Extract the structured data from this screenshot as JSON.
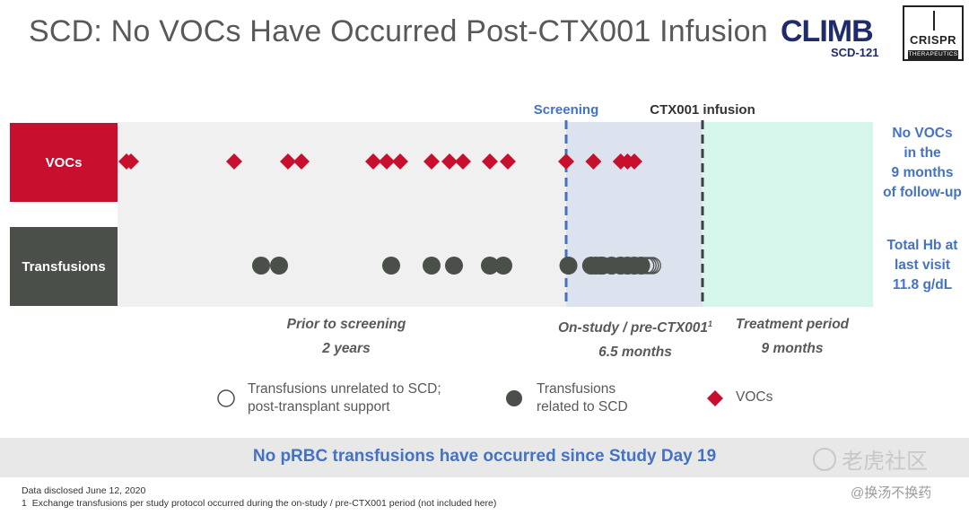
{
  "title": "SCD: No VOCs Have Occurred Post-CTX001 Infusion",
  "logos": {
    "climb_lines": [
      "CLIMB",
      "SCD-121"
    ],
    "crispr_lines": [
      "CRISPR",
      "THERAPEUTICS"
    ]
  },
  "colors": {
    "voc": "#c8102e",
    "transfusion": "#4a4f4a",
    "onstudy_bg": "#dde2ef",
    "treatment_bg": "#d6f5eb",
    "prior_bg": "#f0f0f0",
    "accent": "#4472c4"
  },
  "chart_data": {
    "type": "scatter",
    "subtype": "event-timeline",
    "x_units": "timeline (prior 2 years, on-study 6.5 months, treatment 9 months)",
    "rows": [
      "VOCs",
      "Transfusions"
    ],
    "markers": {
      "screening_label": "Screening",
      "infusion_label": "CTX001 infusion"
    },
    "periods": [
      {
        "label": "Prior to screening",
        "duration": "2 years",
        "label_span": [
          0.0,
          1.0
        ]
      },
      {
        "label": "On-study / pre-CTX001",
        "footnote_mark": "1",
        "duration": "6.5 months",
        "label_span": [
          1.0,
          1.6
        ]
      },
      {
        "label": "Treatment period",
        "duration": "9 months",
        "label_span": [
          1.6,
          2.2
        ]
      }
    ],
    "series": [
      {
        "name": "VOCs",
        "marker": "diamond",
        "x": [
          0.02,
          0.03,
          0.26,
          0.38,
          0.41,
          0.57,
          0.6,
          0.63,
          0.7,
          0.74,
          0.77,
          0.83,
          0.87,
          1.0,
          1.12,
          1.24,
          1.27,
          1.3
        ]
      },
      {
        "name": "Transfusions related to SCD",
        "marker": "filled-circle",
        "x": [
          0.32,
          0.36,
          0.61,
          0.7,
          0.75,
          0.83,
          0.86,
          1.01,
          1.11,
          1.13,
          1.15,
          1.16,
          1.2,
          1.24,
          1.27,
          1.3,
          1.33
        ]
      },
      {
        "name": "Transfusions unrelated to SCD; post-transplant support",
        "marker": "open-circle",
        "x": [
          1.35,
          1.36,
          1.37,
          1.38
        ]
      }
    ]
  },
  "rows": {
    "vocs_label": "VOCs",
    "transfusions_label": "Transfusions"
  },
  "side": {
    "vocs_lines": [
      "No VOCs",
      "in the",
      "9 months",
      "of follow-up"
    ],
    "hb_lines": [
      "Total Hb at",
      "last visit",
      "11.8 g/dL"
    ]
  },
  "legend": {
    "unrelated_lines": [
      "Transfusions unrelated to SCD;",
      "post-transplant support"
    ],
    "related_lines": [
      "Transfusions",
      "related to SCD"
    ],
    "vocs": "VOCs"
  },
  "banner": "No pRBC transfusions have occurred since Study Day 19",
  "footnotes": {
    "date": "Data disclosed June 12, 2020",
    "note_number": "1",
    "note_text": "Exchange transfusions per study protocol occurred during the on-study / pre-CTX001 period (not included here)"
  },
  "watermark": {
    "site": "老虎社区",
    "handle": "@换汤不换药"
  }
}
